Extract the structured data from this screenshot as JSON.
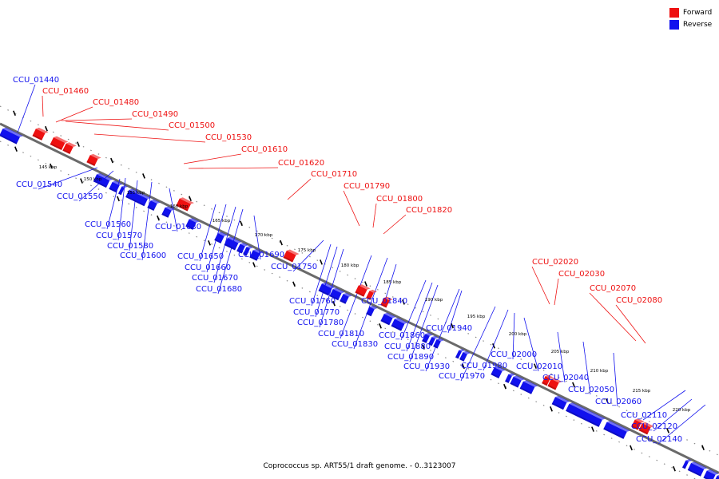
{
  "legend": {
    "forward_label": "Forward",
    "reverse_label": "Reverse",
    "forward_color": "#ee1111",
    "reverse_color": "#1111ee"
  },
  "caption": "Coprococcus sp. ART55/1 draft genome. - 0..3123007",
  "scale_ticks": [
    "145 kbp",
    "150 kbp",
    "155 kbp",
    "160 kbp",
    "165 kbp",
    "170 kbp",
    "175 kbp",
    "180 kbp",
    "185 kbp",
    "190 kbp",
    "195 kbp",
    "200 kbp",
    "205 kbp",
    "210 kbp",
    "215 kbp",
    "220 kbp"
  ],
  "genes": [
    {
      "name": "CCU_01440",
      "strand": "reverse"
    },
    {
      "name": "CCU_01460",
      "strand": "forward"
    },
    {
      "name": "CCU_01480",
      "strand": "forward"
    },
    {
      "name": "CCU_01490",
      "strand": "forward"
    },
    {
      "name": "CCU_01500",
      "strand": "forward"
    },
    {
      "name": "CCU_01530",
      "strand": "forward"
    },
    {
      "name": "CCU_01540",
      "strand": "reverse"
    },
    {
      "name": "CCU_01550",
      "strand": "reverse"
    },
    {
      "name": "CCU_01560",
      "strand": "reverse"
    },
    {
      "name": "CCU_01570",
      "strand": "reverse"
    },
    {
      "name": "CCU_01580",
      "strand": "reverse"
    },
    {
      "name": "CCU_01600",
      "strand": "reverse"
    },
    {
      "name": "CCU_01610",
      "strand": "forward"
    },
    {
      "name": "CCU_01620",
      "strand": "forward"
    },
    {
      "name": "CCU_01630",
      "strand": "reverse"
    },
    {
      "name": "CCU_01650",
      "strand": "reverse"
    },
    {
      "name": "CCU_01660",
      "strand": "reverse"
    },
    {
      "name": "CCU_01670",
      "strand": "reverse"
    },
    {
      "name": "CCU_01680",
      "strand": "reverse"
    },
    {
      "name": "CCU_01690",
      "strand": "reverse"
    },
    {
      "name": "CCU_01710",
      "strand": "forward"
    },
    {
      "name": "CCU_01750",
      "strand": "reverse"
    },
    {
      "name": "CCU_01760",
      "strand": "reverse"
    },
    {
      "name": "CCU_01770",
      "strand": "reverse"
    },
    {
      "name": "CCU_01780",
      "strand": "reverse"
    },
    {
      "name": "CCU_01790",
      "strand": "forward"
    },
    {
      "name": "CCU_01800",
      "strand": "forward"
    },
    {
      "name": "CCU_01810",
      "strand": "reverse"
    },
    {
      "name": "CCU_01820",
      "strand": "forward"
    },
    {
      "name": "CCU_01830",
      "strand": "reverse"
    },
    {
      "name": "CCU_01840",
      "strand": "reverse"
    },
    {
      "name": "CCU_01860",
      "strand": "reverse"
    },
    {
      "name": "CCU_01880",
      "strand": "reverse"
    },
    {
      "name": "CCU_01890",
      "strand": "reverse"
    },
    {
      "name": "CCU_01930",
      "strand": "reverse"
    },
    {
      "name": "CCU_01940",
      "strand": "reverse"
    },
    {
      "name": "CCU_01970",
      "strand": "reverse"
    },
    {
      "name": "CCU_01980",
      "strand": "reverse"
    },
    {
      "name": "CCU_02000",
      "strand": "reverse"
    },
    {
      "name": "CCU_02010",
      "strand": "reverse"
    },
    {
      "name": "CCU_02020",
      "strand": "forward"
    },
    {
      "name": "CCU_02030",
      "strand": "forward"
    },
    {
      "name": "CCU_02040",
      "strand": "reverse"
    },
    {
      "name": "CCU_02050",
      "strand": "reverse"
    },
    {
      "name": "CCU_02060",
      "strand": "reverse"
    },
    {
      "name": "CCU_02070",
      "strand": "forward"
    },
    {
      "name": "CCU_02080",
      "strand": "forward"
    },
    {
      "name": "CCU_02110",
      "strand": "reverse"
    },
    {
      "name": "CCU_02120",
      "strand": "reverse"
    },
    {
      "name": "CCU_02140",
      "strand": "reverse"
    }
  ]
}
